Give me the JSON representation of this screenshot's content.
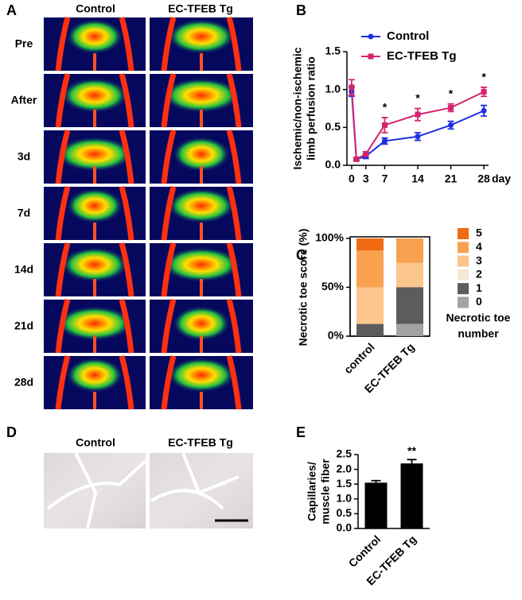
{
  "panel_labels": [
    "A",
    "B",
    "C",
    "D",
    "E"
  ],
  "perfusion_images": {
    "columns": [
      "Control",
      "EC-TFEB Tg"
    ],
    "rows": [
      "Pre",
      "After",
      "3d",
      "7d",
      "14d",
      "21d",
      "28d"
    ]
  },
  "histology": {
    "columns": [
      "Control",
      "EC-TFEB Tg"
    ]
  },
  "chart_data": [
    {
      "type": "line",
      "ylabel": [
        "Ischemic/non-ischemic",
        "limb perfusion ratio"
      ],
      "xlabel": "day",
      "xlim": [
        -1,
        29
      ],
      "xticks": [
        0,
        3,
        7,
        14,
        21,
        28
      ],
      "ylim": [
        0,
        1.5
      ],
      "yticks": [
        {
          "value": 0,
          "label": "0.0"
        },
        {
          "value": 0.5,
          "label": "0.5"
        },
        {
          "value": 1,
          "label": "1.0"
        },
        {
          "value": 1.5,
          "label": "1.5"
        }
      ],
      "x": [
        0,
        1,
        3,
        7,
        14,
        21,
        28
      ],
      "series": [
        {
          "name": "Control",
          "color": "#1f2fe0",
          "values": [
            0.97,
            0.08,
            0.12,
            0.32,
            0.38,
            0.53,
            0.72
          ],
          "errors": [
            0.06,
            0.02,
            0.03,
            0.04,
            0.05,
            0.05,
            0.07
          ]
        },
        {
          "name": "EC-TFEB Tg",
          "color": "#d4246e",
          "values": [
            1.03,
            0.08,
            0.15,
            0.53,
            0.67,
            0.76,
            0.97
          ],
          "errors": [
            0.1,
            0.02,
            0.03,
            0.1,
            0.08,
            0.05,
            0.06
          ]
        }
      ],
      "annotations": [
        {
          "x": 7,
          "text": "*"
        },
        {
          "x": 14,
          "text": "*"
        },
        {
          "x": 21,
          "text": "*"
        },
        {
          "x": 28,
          "text": "*"
        }
      ]
    },
    {
      "type": "stacked_bar",
      "ylabel": [
        "Necrotic toe score (%)"
      ],
      "legend_title": [
        "Necrotic toe",
        "number"
      ],
      "categories": [
        "control",
        "EC-TFEB Tg"
      ],
      "ylim": [
        0,
        100
      ],
      "yticks": [
        {
          "value": 0,
          "label": "0%"
        },
        {
          "value": 50,
          "label": "50%"
        },
        {
          "value": 100,
          "label": "100%"
        }
      ],
      "series": [
        {
          "name": "0",
          "color": "#a3a3a3",
          "values": [
            0,
            12.5
          ]
        },
        {
          "name": "1",
          "color": "#5c5c5c",
          "values": [
            12.5,
            37.5
          ]
        },
        {
          "name": "2",
          "color": "#f3ead8",
          "values": [
            0,
            0
          ]
        },
        {
          "name": "3",
          "color": "#fbc68c",
          "values": [
            37.5,
            25
          ]
        },
        {
          "name": "4",
          "color": "#f8a24f",
          "values": [
            37.5,
            25
          ]
        },
        {
          "name": "5",
          "color": "#f06a12",
          "values": [
            12.5,
            0
          ]
        }
      ]
    },
    {
      "type": "bar",
      "ylabel": [
        "Capillaries/",
        "muscle fiber"
      ],
      "categories": [
        "Control",
        "EC-TFEB Tg"
      ],
      "values": [
        1.55,
        2.2
      ],
      "errors": [
        0.07,
        0.13
      ],
      "color": "#000000",
      "ylim": [
        0,
        2.5
      ],
      "yticks": [
        {
          "value": 0,
          "label": "0.0"
        },
        {
          "value": 0.5,
          "label": "0.5"
        },
        {
          "value": 1,
          "label": "1.0"
        },
        {
          "value": 1.5,
          "label": "1.5"
        },
        {
          "value": 2,
          "label": "2.0"
        },
        {
          "value": 2.5,
          "label": "2.5"
        }
      ],
      "annotations": [
        {
          "x": "EC-TFEB Tg",
          "text": "**"
        }
      ]
    }
  ]
}
